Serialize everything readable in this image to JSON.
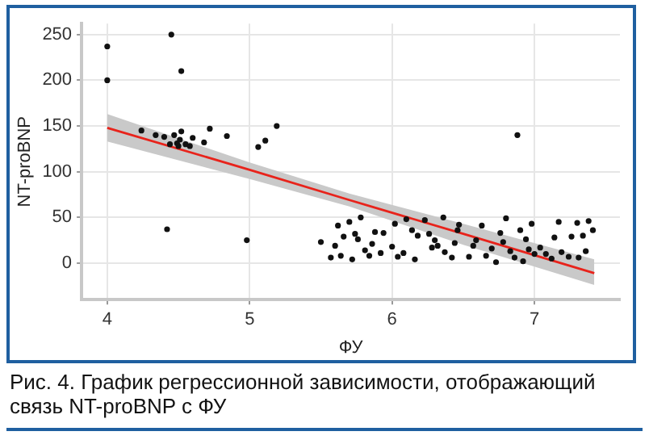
{
  "chart_data": {
    "type": "scatter",
    "xlabel": "ФУ",
    "ylabel": "NT-proBNP",
    "xlim": [
      3.82,
      7.6
    ],
    "ylim": [
      -40,
      262
    ],
    "xticks": [
      4,
      5,
      6,
      7
    ],
    "yticks": [
      0,
      50,
      100,
      150,
      200,
      250
    ],
    "grid": true,
    "marker": "circle",
    "series": [
      {
        "type": "scatter",
        "color": "#111111",
        "x": [
          4.0,
          4.0,
          4.45,
          4.52,
          4.42,
          4.24,
          4.34,
          4.4,
          4.47,
          4.52,
          4.44,
          4.49,
          4.5,
          4.51,
          4.55,
          4.58,
          4.6,
          4.68,
          4.72,
          4.84,
          4.98,
          5.06,
          5.11,
          5.19,
          5.5,
          5.57,
          5.6,
          5.62,
          5.64,
          5.66,
          5.7,
          5.72,
          5.74,
          5.76,
          5.78,
          5.81,
          5.84,
          5.86,
          5.88,
          5.92,
          5.94,
          6.0,
          6.02,
          6.04,
          6.08,
          6.1,
          6.14,
          6.16,
          6.18,
          6.23,
          6.26,
          6.28,
          6.3,
          6.32,
          6.36,
          6.37,
          6.42,
          6.44,
          6.46,
          6.47,
          6.54,
          6.57,
          6.59,
          6.63,
          6.66,
          6.7,
          6.73,
          6.76,
          6.78,
          6.8,
          6.83,
          6.86,
          6.88,
          6.9,
          6.92,
          6.94,
          6.96,
          6.98,
          7.0,
          7.04,
          7.08,
          7.12,
          7.14,
          7.17,
          7.19,
          7.24,
          7.26,
          7.3,
          7.31,
          7.34,
          7.36,
          7.38,
          7.41
        ],
        "values": [
          237,
          200,
          250,
          210,
          37,
          145,
          140,
          138,
          140,
          144,
          130,
          131,
          128,
          135,
          130,
          128,
          137,
          132,
          147,
          139,
          25,
          127,
          134,
          150,
          23,
          6,
          19,
          41,
          8,
          29,
          45,
          4,
          32,
          26,
          50,
          14,
          8,
          21,
          34,
          11,
          33,
          18,
          43,
          7,
          11,
          48,
          36,
          4,
          30,
          47,
          32,
          17,
          25,
          19,
          50,
          12,
          6,
          22,
          36,
          42,
          7,
          19,
          25,
          41,
          8,
          16,
          1,
          33,
          23,
          49,
          13,
          6,
          140,
          36,
          2,
          26,
          15,
          43,
          10,
          17,
          10,
          5,
          28,
          45,
          12,
          7,
          29,
          44,
          6,
          30,
          13,
          46,
          36
        ]
      },
      {
        "type": "line",
        "color": "#e8231b",
        "marker": "none",
        "x": [
          4,
          5,
          5.7,
          6.5,
          7.42
        ],
        "values": [
          148,
          102,
          69,
          32,
          -11
        ],
        "lower": [
          133,
          92,
          62,
          20,
          -24
        ],
        "upper": [
          163,
          110,
          76,
          43,
          4
        ]
      }
    ],
    "annotations": [
      "Рис. 4. График регрессионной зависимости, отображающий связь NT-proBNP с ФУ"
    ]
  }
}
